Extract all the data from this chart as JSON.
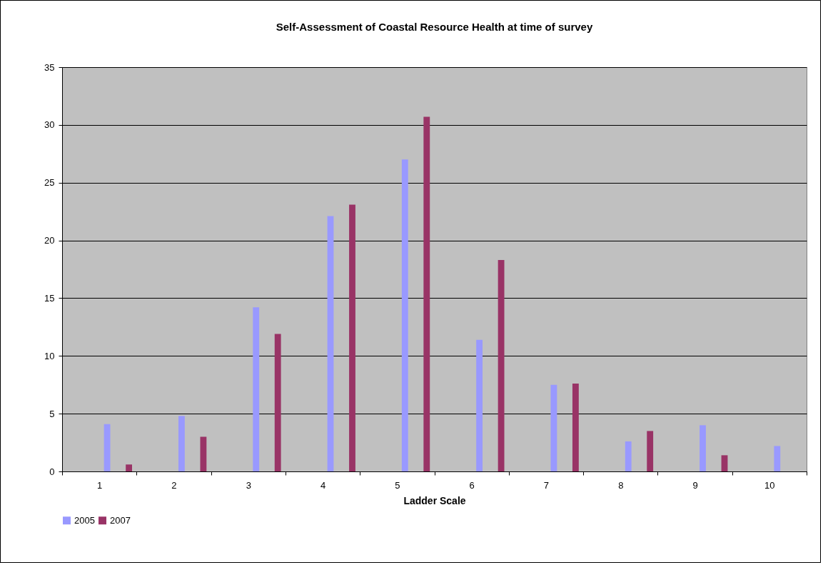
{
  "chart_data": {
    "type": "bar",
    "title": "Self-Assessment of Coastal Resource Health at time of survey",
    "xlabel": "Ladder Scale",
    "categories": [
      "1",
      "2",
      "3",
      "4",
      "5",
      "6",
      "7",
      "8",
      "9",
      "10"
    ],
    "series": [
      {
        "name": "2005",
        "color": "#9999ff",
        "values": [
          4.1,
          4.8,
          14.2,
          22.1,
          27.0,
          11.4,
          7.5,
          2.6,
          4.0,
          2.2
        ]
      },
      {
        "name": "2007",
        "color": "#993366",
        "values": [
          0.6,
          3.0,
          11.9,
          23.1,
          30.7,
          18.3,
          7.6,
          3.5,
          1.4,
          null
        ]
      }
    ],
    "ylim": [
      0,
      35
    ],
    "yticks": [
      0,
      5,
      10,
      15,
      20,
      25,
      30,
      35
    ],
    "grid": "y",
    "legend": "bottom"
  }
}
